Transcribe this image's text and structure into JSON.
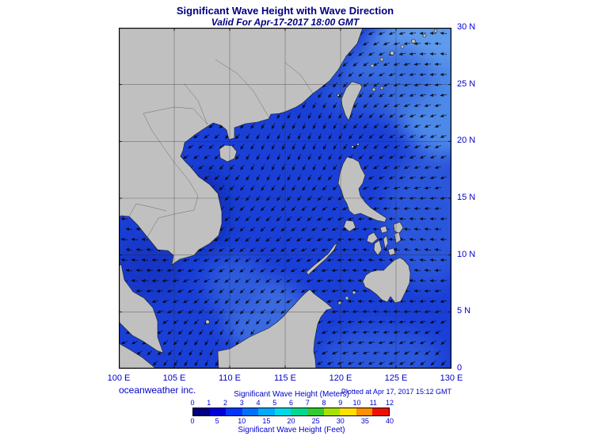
{
  "title": "Significant Wave Height with Wave Direction",
  "subtitle": "Valid For Apr-17-2017 18:00 GMT",
  "credit": "oceanweather inc.",
  "plotted_at": "Plotted at Apr 17, 2017 15:12 GMT",
  "axes": {
    "lat_labels": [
      "30 N",
      "25 N",
      "20 N",
      "15 N",
      "10 N",
      "5 N",
      "0"
    ],
    "lon_labels": [
      "100 E",
      "105 E",
      "110 E",
      "115 E",
      "120 E",
      "125 E",
      "130 E"
    ]
  },
  "colorbar": {
    "title_meters": "Significant Wave Height (Meters)",
    "title_feet": "Significant Wave Height (Feet)",
    "meters_ticks": [
      "0",
      "1",
      "2",
      "3",
      "4",
      "5",
      "6",
      "7",
      "8",
      "9",
      "10",
      "11",
      "12"
    ],
    "feet_ticks": [
      "0",
      "5",
      "10",
      "15",
      "20",
      "25",
      "30",
      "35",
      "40"
    ],
    "segment_colors": [
      "#000080",
      "#0000d8",
      "#0038ff",
      "#0070ff",
      "#00aaff",
      "#00d8e8",
      "#00d890",
      "#30cc30",
      "#a8e000",
      "#ffe000",
      "#ff9000",
      "#ee1000"
    ]
  },
  "colors": {
    "heading": "#000080",
    "label": "#0000cd",
    "land": "#c0c0c0",
    "ocean": "#1a3fd6"
  },
  "chart_data": {
    "type": "heatmap",
    "title": "Significant Wave Height with Wave Direction",
    "valid_for": "Apr-17-2017 18:00 GMT",
    "plotted_at": "Apr 17, 2017 15:12 GMT",
    "region": "South China Sea / Philippines",
    "lon_range_deg_e": [
      100,
      130
    ],
    "lat_range_deg_n": [
      0,
      30
    ],
    "grid_interval_deg": 5,
    "colorbar_meters_ticks": [
      0,
      1,
      2,
      3,
      4,
      5,
      6,
      7,
      8,
      9,
      10,
      11,
      12
    ],
    "colorbar_feet_ticks": [
      0,
      5,
      10,
      15,
      20,
      25,
      30,
      35,
      40
    ],
    "units": [
      "Meters",
      "Feet"
    ],
    "legend_position": "bottom-center"
  }
}
